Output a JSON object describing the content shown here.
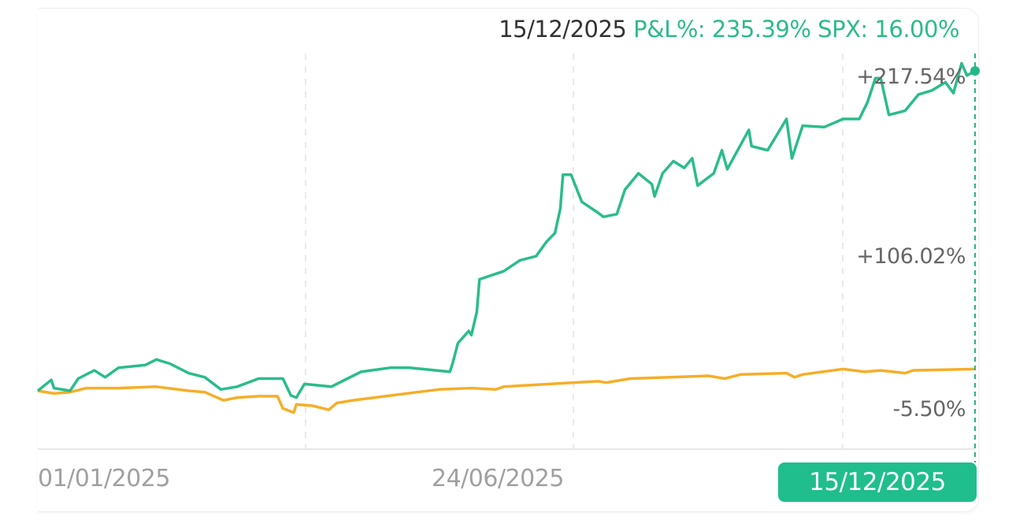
{
  "header": {
    "date": "15/12/2025",
    "pnl_text": "P&L%: 235.39%",
    "spx_text": "SPX: 16.00%"
  },
  "colors": {
    "strategy": "#20b886",
    "spx": "#f5aa1c",
    "badge": "#1fbe8c"
  },
  "chart_data": {
    "type": "line",
    "xlim": [
      "2025-01-01",
      "2025-12-15"
    ],
    "ylim": [
      -5.5,
      235.39
    ],
    "grid": {
      "vertical": "dashed",
      "horizontal": false
    },
    "y_tick_labels": [
      "+217.54%",
      "+106.02%",
      "-5.50%"
    ],
    "x_tick_labels": [
      "01/01/2025",
      "24/06/2025"
    ],
    "highlight_x_label": "15/12/2025",
    "series": [
      {
        "name": "P&L%",
        "color": "#20b886",
        "dates": [
          "2025-01-01",
          "2025-01-06",
          "2025-01-07",
          "2025-01-13",
          "2025-01-16",
          "2025-01-22",
          "2025-01-26",
          "2025-01-31",
          "2025-02-10",
          "2025-02-14",
          "2025-02-19",
          "2025-02-26",
          "2025-03-04",
          "2025-03-10",
          "2025-03-16",
          "2025-03-24",
          "2025-04-02",
          "2025-04-05",
          "2025-04-07",
          "2025-04-10",
          "2025-04-20",
          "2025-04-26",
          "2025-05-01",
          "2025-05-12",
          "2025-05-19",
          "2025-06-03",
          "2025-06-04",
          "2025-06-06",
          "2025-06-10",
          "2025-06-11",
          "2025-06-13",
          "2025-06-14",
          "2025-06-23",
          "2025-06-29",
          "2025-07-05",
          "2025-07-09",
          "2025-07-12",
          "2025-07-14",
          "2025-07-15",
          "2025-07-18",
          "2025-07-22",
          "2025-07-28",
          "2025-07-30",
          "2025-08-04",
          "2025-08-07",
          "2025-08-12",
          "2025-08-17",
          "2025-08-18",
          "2025-08-21",
          "2025-08-25",
          "2025-08-29",
          "2025-09-01",
          "2025-09-03",
          "2025-09-09",
          "2025-09-12",
          "2025-09-14",
          "2025-09-22",
          "2025-09-23",
          "2025-09-29",
          "2025-10-06",
          "2025-10-08",
          "2025-10-12",
          "2025-10-20",
          "2025-10-27",
          "2025-11-02",
          "2025-11-05",
          "2025-11-08",
          "2025-11-10",
          "2025-11-13",
          "2025-11-19",
          "2025-11-24",
          "2025-11-29",
          "2025-12-04",
          "2025-12-07",
          "2025-12-10",
          "2025-12-12",
          "2025-12-15"
        ],
        "values": [
          0,
          8,
          2,
          0,
          9,
          15,
          10,
          17,
          19,
          23,
          20,
          13,
          10,
          1,
          3,
          9,
          9,
          -3.5,
          -5,
          5,
          3,
          9,
          14,
          17,
          17,
          14,
          20,
          35,
          44,
          41,
          58,
          82,
          88,
          96,
          99,
          110,
          116,
          134,
          159,
          159,
          139,
          131,
          128,
          130,
          148,
          160,
          152,
          143,
          160,
          169,
          164,
          171,
          151,
          160,
          177,
          163,
          192,
          180,
          177,
          200,
          171,
          195,
          194,
          200,
          200,
          212,
          230,
          230,
          203,
          206,
          218,
          221,
          227,
          219,
          241,
          232,
          235.39
        ]
      },
      {
        "name": "SPX",
        "color": "#f5aa1c",
        "dates": [
          "2025-01-01",
          "2025-01-07",
          "2025-01-13",
          "2025-01-19",
          "2025-01-31",
          "2025-02-14",
          "2025-02-26",
          "2025-03-04",
          "2025-03-11",
          "2025-03-16",
          "2025-03-24",
          "2025-03-31",
          "2025-04-02",
          "2025-04-06",
          "2025-04-07",
          "2025-04-13",
          "2025-04-19",
          "2025-04-22",
          "2025-04-28",
          "2025-05-10",
          "2025-05-22",
          "2025-05-30",
          "2025-06-11",
          "2025-06-20",
          "2025-06-23",
          "2025-07-10",
          "2025-07-28",
          "2025-07-31",
          "2025-08-09",
          "2025-08-24",
          "2025-09-07",
          "2025-09-13",
          "2025-09-19",
          "2025-10-06",
          "2025-10-09",
          "2025-10-12",
          "2025-10-27",
          "2025-11-04",
          "2025-11-10",
          "2025-11-19",
          "2025-11-22",
          "2025-12-15"
        ],
        "values": [
          0,
          -2,
          -1,
          2,
          2,
          3,
          0,
          -1,
          -7,
          -5,
          -4,
          -4,
          -13,
          -16,
          -10,
          -11,
          -14,
          -9,
          -7,
          -4,
          -1,
          1,
          2,
          1,
          3,
          5,
          7,
          6,
          9,
          10,
          11,
          9,
          12,
          13,
          10,
          12,
          16,
          14,
          15,
          13,
          15,
          16
        ]
      }
    ]
  }
}
